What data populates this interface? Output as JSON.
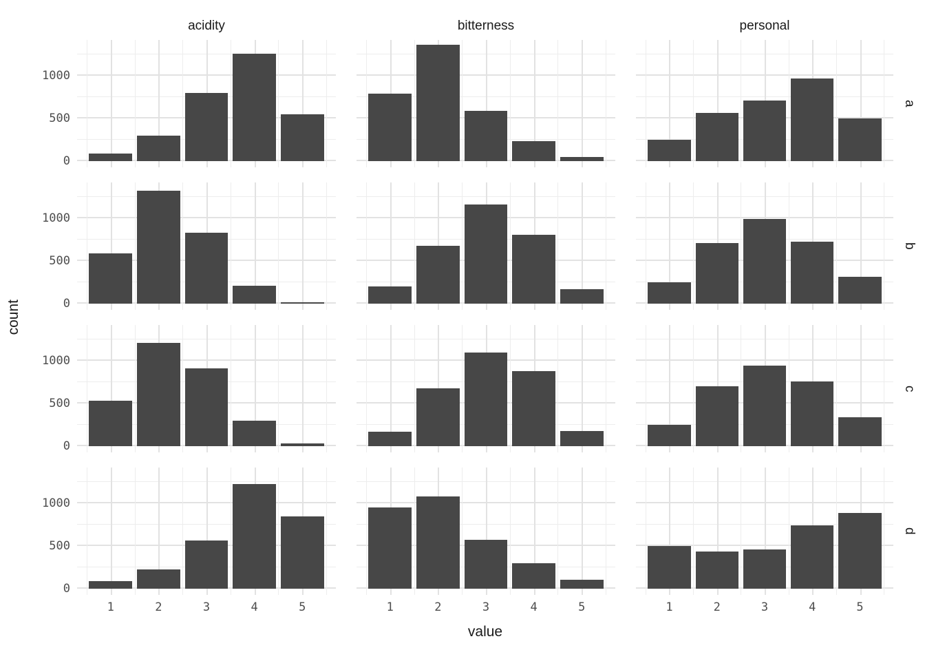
{
  "chart_data": {
    "type": "bar",
    "title": "",
    "xlabel": "value",
    "ylabel": "count",
    "facet_columns": [
      "acidity",
      "bitterness",
      "personal"
    ],
    "facet_rows": [
      "a",
      "b",
      "c",
      "d"
    ],
    "categories": [
      "1",
      "2",
      "3",
      "4",
      "5"
    ],
    "y_major_ticks": [
      0,
      500,
      1000
    ],
    "y_minor_ticks": [
      250,
      750,
      1250
    ],
    "y_tick_labels": [
      "0",
      "500",
      "1000"
    ],
    "ylim": [
      -70,
      1420
    ],
    "x_range": [
      0.3,
      5.7
    ],
    "bar_width": 0.9,
    "grid": true,
    "legend": "none",
    "panels": [
      {
        "row": "a",
        "column": "acidity",
        "values": [
          90,
          300,
          800,
          1260,
          550
        ]
      },
      {
        "row": "a",
        "column": "bitterness",
        "values": [
          790,
          1360,
          590,
          240,
          50
        ]
      },
      {
        "row": "a",
        "column": "personal",
        "values": [
          250,
          570,
          710,
          970,
          500
        ]
      },
      {
        "row": "b",
        "column": "acidity",
        "values": [
          590,
          1320,
          830,
          210,
          20
        ]
      },
      {
        "row": "b",
        "column": "bitterness",
        "values": [
          200,
          680,
          1160,
          810,
          170
        ]
      },
      {
        "row": "b",
        "column": "personal",
        "values": [
          250,
          710,
          990,
          730,
          320
        ]
      },
      {
        "row": "c",
        "column": "acidity",
        "values": [
          535,
          1210,
          910,
          300,
          35
        ]
      },
      {
        "row": "c",
        "column": "bitterness",
        "values": [
          170,
          680,
          1100,
          880,
          180
        ]
      },
      {
        "row": "c",
        "column": "personal",
        "values": [
          255,
          700,
          945,
          760,
          340
        ]
      },
      {
        "row": "d",
        "column": "acidity",
        "values": [
          90,
          230,
          570,
          1230,
          850
        ]
      },
      {
        "row": "d",
        "column": "bitterness",
        "values": [
          950,
          1080,
          575,
          300,
          105
        ]
      },
      {
        "row": "d",
        "column": "personal",
        "values": [
          500,
          440,
          460,
          740,
          890
        ]
      }
    ],
    "colors": {
      "bar": "#474747",
      "grid_major": "#e2e2e2",
      "grid_minor": "#ededed",
      "tick_label": "#4d4d4d",
      "text": "#1a1a1a",
      "background": "#ffffff"
    }
  }
}
